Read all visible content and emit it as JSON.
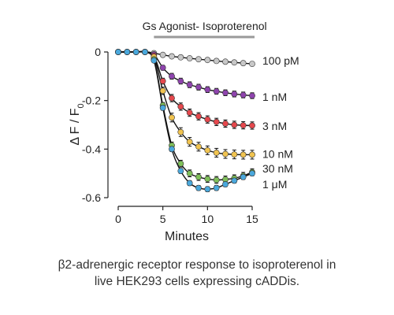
{
  "chart_data": {
    "type": "line",
    "annotation": "Gs Agonist- Isoproterenol",
    "annotation_span_x": [
      4,
      15
    ],
    "xlabel": "Minutes",
    "ylabel_main": "Δ F / F",
    "ylabel_sub": "0",
    "xlim": [
      0,
      15
    ],
    "ylim": [
      -0.6,
      0
    ],
    "xticks": [
      0,
      5,
      10,
      15
    ],
    "yticks": [
      0,
      -0.2,
      -0.4,
      -0.6
    ],
    "ytick_labels": [
      "0",
      "-0.2",
      "-0.4",
      "-0.6"
    ],
    "x": [
      0,
      1,
      2,
      3,
      4,
      5,
      6,
      7,
      8,
      9,
      10,
      11,
      12,
      13,
      14,
      15
    ],
    "series": [
      {
        "name": "100 pM",
        "color": "#c8c8c8",
        "values": [
          0,
          0,
          0,
          0,
          -0.005,
          -0.012,
          -0.018,
          -0.022,
          -0.026,
          -0.03,
          -0.033,
          -0.037,
          -0.04,
          -0.043,
          -0.046,
          -0.049
        ],
        "errors": [
          0,
          0,
          0,
          0,
          0.004,
          0.004,
          0.004,
          0.004,
          0.004,
          0.004,
          0.004,
          0.004,
          0.004,
          0.004,
          0.004,
          0.004
        ]
      },
      {
        "name": "1 nM",
        "color": "#8e44ad",
        "values": [
          0,
          0,
          0,
          0,
          -0.01,
          -0.065,
          -0.1,
          -0.12,
          -0.135,
          -0.145,
          -0.155,
          -0.162,
          -0.168,
          -0.173,
          -0.177,
          -0.18
        ],
        "errors": [
          0,
          0,
          0,
          0,
          0.005,
          0.01,
          0.012,
          0.012,
          0.012,
          0.012,
          0.012,
          0.012,
          0.012,
          0.012,
          0.012,
          0.012
        ]
      },
      {
        "name": "3 nM",
        "color": "#e5484d",
        "values": [
          0,
          0,
          0,
          0,
          -0.015,
          -0.12,
          -0.19,
          -0.225,
          -0.25,
          -0.265,
          -0.278,
          -0.288,
          -0.295,
          -0.3,
          -0.302,
          -0.303
        ],
        "errors": [
          0,
          0,
          0,
          0,
          0.006,
          0.012,
          0.015,
          0.015,
          0.015,
          0.015,
          0.015,
          0.015,
          0.015,
          0.015,
          0.015,
          0.015
        ]
      },
      {
        "name": "10 nM",
        "color": "#f0c350",
        "values": [
          0,
          0,
          0,
          0,
          -0.02,
          -0.16,
          -0.27,
          -0.33,
          -0.37,
          -0.39,
          -0.405,
          -0.415,
          -0.42,
          -0.422,
          -0.423,
          -0.423
        ],
        "errors": [
          0,
          0,
          0,
          0,
          0.006,
          0.015,
          0.018,
          0.018,
          0.018,
          0.018,
          0.018,
          0.018,
          0.018,
          0.018,
          0.018,
          0.018
        ]
      },
      {
        "name": "30 nM",
        "color": "#7fbf5a",
        "values": [
          0,
          0,
          0,
          0,
          -0.03,
          -0.22,
          -0.385,
          -0.46,
          -0.5,
          -0.515,
          -0.523,
          -0.527,
          -0.525,
          -0.52,
          -0.51,
          -0.495
        ],
        "errors": [
          0,
          0,
          0,
          0,
          0.006,
          0.012,
          0.014,
          0.014,
          0.014,
          0.014,
          0.014,
          0.014,
          0.014,
          0.014,
          0.014,
          0.014
        ]
      },
      {
        "name": "1 μM",
        "color": "#4aa8dc",
        "values": [
          0,
          0,
          0,
          0,
          -0.035,
          -0.23,
          -0.4,
          -0.49,
          -0.54,
          -0.56,
          -0.565,
          -0.56,
          -0.545,
          -0.53,
          -0.515,
          -0.5
        ],
        "errors": [
          0,
          0,
          0,
          0,
          0.006,
          0.01,
          0.01,
          0.01,
          0.01,
          0.01,
          0.01,
          0.01,
          0.01,
          0.01,
          0.01,
          0.01
        ]
      }
    ],
    "series_label_y": [
      -0.035,
      -0.185,
      -0.305,
      -0.42,
      -0.48,
      -0.545
    ]
  },
  "caption": {
    "line1": "β2-adrenergic receptor response to isoproterenol in",
    "line2": "live HEK293 cells expressing cADDis."
  }
}
